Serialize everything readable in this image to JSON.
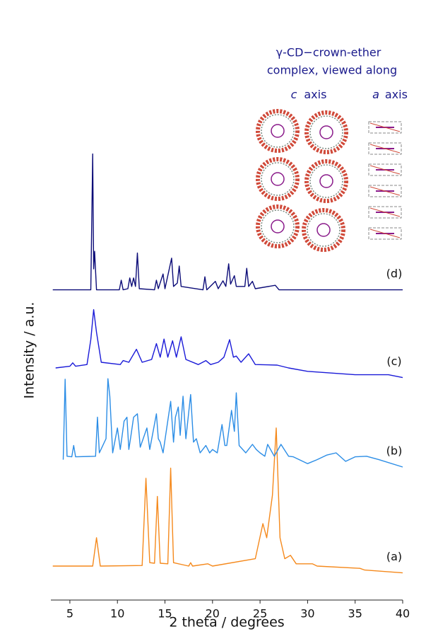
{
  "chart_data": {
    "type": "line",
    "xlabel": "2 theta / degrees",
    "ylabel": "Intensity / a.u.",
    "xlim": [
      3,
      40
    ],
    "ylim": [
      0,
      100
    ],
    "xticks": [
      5,
      10,
      15,
      20,
      25,
      30,
      35,
      40
    ],
    "annotation_lines": [
      "γ-CD−crown-ether",
      "complex, viewed along"
    ],
    "view_labels": [
      [
        "c",
        "axis"
      ],
      [
        "a",
        "axis"
      ]
    ],
    "series": [
      {
        "name": "(a)",
        "color": "#f5891c",
        "x": [
          3.2,
          7.4,
          7.8,
          8.2,
          12.6,
          13.0,
          13.4,
          13.9,
          14.2,
          14.5,
          15.3,
          15.6,
          15.9,
          17.5,
          17.7,
          17.9,
          19.5,
          20.0,
          24.5,
          25.3,
          25.7,
          26.3,
          26.7,
          27.1,
          27.6,
          28.2,
          28.8,
          30.5,
          31,
          35.5,
          36,
          40
        ],
        "values": [
          6,
          6,
          11,
          6,
          6.1,
          21.5,
          6.6,
          6.5,
          18.3,
          6.5,
          6.4,
          23.3,
          6.6,
          6,
          6.6,
          6,
          6.4,
          6,
          7.3,
          13.5,
          11,
          18.5,
          30.4,
          11,
          7.3,
          7.9,
          6.4,
          6.4,
          6,
          5.6,
          5.3,
          4.8
        ]
      },
      {
        "name": "(b)",
        "color": "#2b8de6",
        "x": [
          4.3,
          4.5,
          4.7,
          5.2,
          5.4,
          5.6,
          7.7,
          7.9,
          8.1,
          8.8,
          9.0,
          9.2,
          9.5,
          10.0,
          10.3,
          10.7,
          11.0,
          11.2,
          11.4,
          11.7,
          12.1,
          12.4,
          13.1,
          13.4,
          14.1,
          14.3,
          14.5,
          14.8,
          15.6,
          15.9,
          16.1,
          16.4,
          16.6,
          16.9,
          17.2,
          17.7,
          18.0,
          18.3,
          18.7,
          19.3,
          19.7,
          20.0,
          20.5,
          21.0,
          21.3,
          21.5,
          22.0,
          22.3,
          22.5,
          22.8,
          23.5,
          24.2,
          24.6,
          25.0,
          25.5,
          25.8,
          26.5,
          27.2,
          28,
          28.5,
          30,
          31,
          32,
          33,
          34,
          35,
          36.2,
          37.5,
          40
        ],
        "values": [
          24.8,
          39,
          25.4,
          25.3,
          27.3,
          25.3,
          25.4,
          32.3,
          26,
          28.5,
          39.1,
          36,
          26,
          30.4,
          26.6,
          31.6,
          32.3,
          26.6,
          28.8,
          32.3,
          32.9,
          27,
          30.4,
          26.6,
          32.9,
          28.5,
          27.9,
          26,
          35.1,
          27.9,
          32.3,
          34.1,
          29.1,
          36,
          28.5,
          36.3,
          27.9,
          28.5,
          26,
          27.3,
          26,
          26.6,
          26,
          31,
          27.3,
          27.3,
          33.5,
          29.8,
          36.6,
          27.3,
          26,
          27.5,
          26.6,
          26,
          25.4,
          27.5,
          25.4,
          27.5,
          25.4,
          25.3,
          24.1,
          24.8,
          25.6,
          26,
          24.5,
          25.3,
          25.4,
          24.8,
          23.5
        ]
      },
      {
        "name": "(c)",
        "color": "#1a1ad8",
        "x": [
          3.5,
          5.0,
          5.3,
          5.6,
          6.8,
          7.2,
          7.5,
          7.8,
          8.3,
          10.3,
          10.6,
          11.2,
          12.0,
          12.6,
          13.6,
          14.1,
          14.5,
          14.9,
          15.3,
          15.8,
          16.2,
          16.7,
          17.2,
          18.5,
          19.3,
          19.8,
          20.6,
          21.2,
          21.8,
          22.2,
          22.5,
          23,
          23.8,
          24.5,
          26.8,
          28,
          30,
          35,
          38.5,
          40
        ],
        "values": [
          41,
          41.3,
          41.9,
          41.3,
          41.6,
          46,
          51.3,
          47.3,
          42,
          41.6,
          42.3,
          42,
          44.3,
          42,
          42.5,
          45.3,
          42.9,
          46.1,
          42.9,
          45.8,
          42.9,
          46.5,
          42.5,
          41.6,
          42.3,
          41.6,
          42,
          42.9,
          46,
          42.9,
          43.1,
          42,
          43.5,
          41.6,
          41.5,
          41,
          40.4,
          39.8,
          39.8,
          39.3
        ]
      },
      {
        "name": "(d)",
        "color": "#0c0c78",
        "x": [
          3.2,
          5.2,
          7.2,
          7.4,
          7.5,
          7.6,
          7.8,
          10.2,
          10.4,
          10.6,
          11.1,
          11.3,
          11.5,
          11.7,
          11.9,
          12.1,
          12.3,
          13.9,
          14.1,
          14.3,
          14.8,
          15.0,
          15.7,
          15.9,
          16.3,
          16.5,
          16.7,
          19.0,
          19.2,
          19.4,
          20.3,
          20.6,
          21.1,
          21.4,
          21.7,
          21.9,
          22.3,
          22.5,
          23.4,
          23.6,
          23.8,
          24.2,
          24.5,
          26.6,
          27,
          40
        ],
        "values": [
          54.8,
          54.8,
          54.8,
          78.8,
          58.5,
          61.6,
          54.8,
          54.8,
          56.5,
          54.8,
          55,
          56.9,
          55.4,
          56.9,
          55.4,
          61.3,
          55,
          54.8,
          56.5,
          55,
          57.6,
          55,
          60.4,
          55.4,
          56,
          59,
          55.4,
          54.8,
          57.1,
          54.8,
          56.3,
          55,
          56.4,
          55.4,
          59.4,
          55.8,
          57.3,
          55.4,
          55.4,
          58.6,
          55.4,
          56.3,
          55,
          55.6,
          54.8,
          54.8
        ]
      }
    ]
  }
}
